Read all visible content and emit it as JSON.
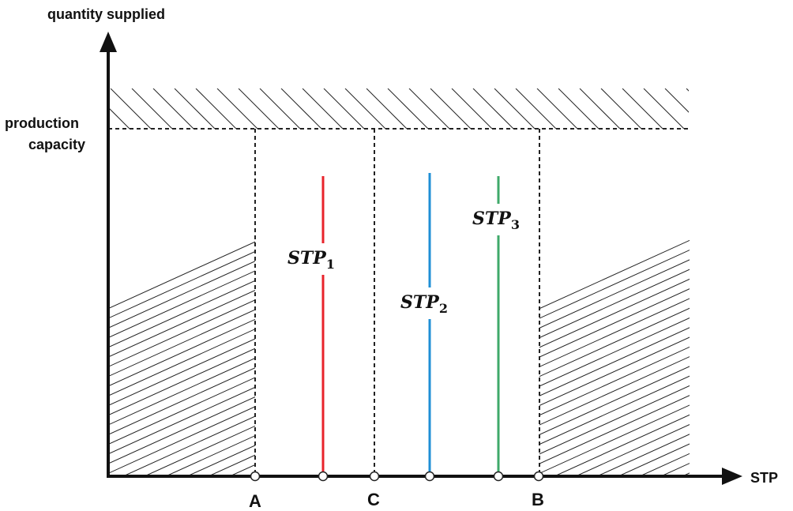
{
  "axes": {
    "y_label": "quantity supplied",
    "x_label": "STP",
    "capacity_label_line1": "production",
    "capacity_label_line2": "capacity"
  },
  "points": {
    "a": "A",
    "c": "C",
    "b": "B"
  },
  "stp_lines": [
    {
      "base": "STP",
      "sub": "1",
      "color": "#e8232b"
    },
    {
      "base": "STP",
      "sub": "2",
      "color": "#1f8fd6"
    },
    {
      "base": "STP",
      "sub": "3",
      "color": "#3fa96a"
    }
  ]
}
